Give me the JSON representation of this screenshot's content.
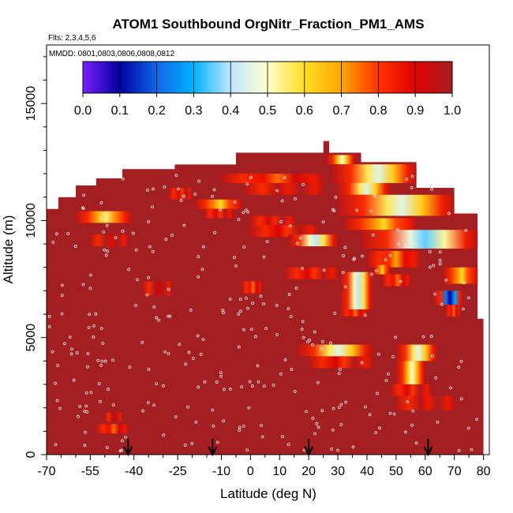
{
  "chart_data": {
    "type": "heatmap",
    "title": "ATOM1 Southbound OrgNitr_Fraction_PM1_AMS",
    "subtitle_flights": "Flts: 2,3,4,5,6",
    "subtitle_dates": "MMDD: 0801,0803,0806,0808,0812",
    "xlabel": "Latitude (deg N)",
    "ylabel": "Altitude (m)",
    "xlim": [
      -70,
      82
    ],
    "ylim": [
      0,
      17500
    ],
    "x_ticks": [
      -70,
      -55,
      -40,
      -25,
      -10,
      0,
      10,
      20,
      30,
      40,
      50,
      60,
      70,
      80
    ],
    "x_tick_labels": [
      "-70",
      "-55",
      "-40",
      "-25",
      "-10",
      "0",
      "10",
      "20",
      "30",
      "40",
      "50",
      "60",
      "70",
      "80"
    ],
    "y_ticks": [
      0,
      5000,
      10000,
      15000
    ],
    "y_tick_labels": [
      "0",
      "5000",
      "10000",
      "15000"
    ],
    "colorbar": {
      "range": [
        0,
        1
      ],
      "tick_labels": [
        "0.0",
        "0.1",
        "0.2",
        "0.3",
        "0.4",
        "0.5",
        "0.6",
        "0.7",
        "0.8",
        "0.9",
        "1.0"
      ],
      "colors": [
        "#7c1fff",
        "#0000a0",
        "#1066e6",
        "#00b2ff",
        "#bfe6ff",
        "#ffffcc",
        "#ffdd22",
        "#ffa500",
        "#ff3300",
        "#e00000",
        "#a71e22"
      ]
    },
    "background_fraction": 1.0,
    "background_color": "#a41f22",
    "envelope": [
      [
        -70,
        10500
      ],
      [
        -66,
        10500
      ],
      [
        -66,
        11000
      ],
      [
        -60,
        11000
      ],
      [
        -60,
        11500
      ],
      [
        -53,
        11500
      ],
      [
        -53,
        11800
      ],
      [
        -44,
        11800
      ],
      [
        -44,
        12200
      ],
      [
        -26,
        12200
      ],
      [
        -26,
        12400
      ],
      [
        -5,
        12400
      ],
      [
        -5,
        12900
      ],
      [
        25,
        12900
      ],
      [
        25,
        13400
      ],
      [
        27,
        13400
      ],
      [
        27,
        12900
      ],
      [
        38,
        12900
      ],
      [
        38,
        12500
      ],
      [
        57,
        12500
      ],
      [
        57,
        11400
      ],
      [
        70,
        11400
      ],
      [
        70,
        10300
      ],
      [
        78,
        10300
      ],
      [
        78,
        5800
      ],
      [
        80,
        5800
      ],
      [
        80,
        0
      ],
      [
        -70,
        0
      ]
    ],
    "features": [
      {
        "lat": [
          -60,
          -41
        ],
        "alt": [
          9900,
          10400
        ],
        "minval": 0.55
      },
      {
        "lat": [
          -55,
          -42
        ],
        "alt": [
          8900,
          9400
        ],
        "minval": 0.88
      },
      {
        "lat": [
          -53,
          -42
        ],
        "alt": [
          900,
          1300
        ],
        "minval": 0.75
      },
      {
        "lat": [
          -50,
          -44
        ],
        "alt": [
          1400,
          1800
        ],
        "minval": 0.9
      },
      {
        "lat": [
          -37,
          -27
        ],
        "alt": [
          6800,
          7400
        ],
        "minval": 0.9
      },
      {
        "lat": [
          -28,
          -20
        ],
        "alt": [
          10900,
          11400
        ],
        "minval": 0.8
      },
      {
        "lat": [
          -19,
          -3
        ],
        "alt": [
          10500,
          10900
        ],
        "minval": 0.6
      },
      {
        "lat": [
          -16,
          -6
        ],
        "alt": [
          10100,
          10500
        ],
        "minval": 0.8
      },
      {
        "lat": [
          -10,
          25
        ],
        "alt": [
          11600,
          12000
        ],
        "minval": 0.75
      },
      {
        "lat": [
          -2,
          25
        ],
        "alt": [
          11100,
          11600
        ],
        "minval": 0.85
      },
      {
        "lat": [
          0,
          15
        ],
        "alt": [
          9800,
          10200
        ],
        "minval": 0.82
      },
      {
        "lat": [
          -3,
          4
        ],
        "alt": [
          6900,
          7400
        ],
        "minval": 0.75
      },
      {
        "lat": [
          0,
          23
        ],
        "alt": [
          9300,
          9800
        ],
        "minval": 0.8
      },
      {
        "lat": [
          13,
          30
        ],
        "alt": [
          8900,
          9400
        ],
        "minval": 0.4
      },
      {
        "lat": [
          12,
          30
        ],
        "alt": [
          7500,
          8000
        ],
        "minval": 0.8
      },
      {
        "lat": [
          16,
          42
        ],
        "alt": [
          4200,
          4700
        ],
        "minval": 0.45
      },
      {
        "lat": [
          20,
          42
        ],
        "alt": [
          3700,
          4200
        ],
        "minval": 0.8
      },
      {
        "lat": [
          26,
          36
        ],
        "alt": [
          12400,
          12800
        ],
        "minval": 0.5
      },
      {
        "lat": [
          28,
          57
        ],
        "alt": [
          11600,
          12400
        ],
        "minval": 0.45
      },
      {
        "lat": [
          30,
          48
        ],
        "alt": [
          11100,
          11600
        ],
        "minval": 0.45
      },
      {
        "lat": [
          30,
          70
        ],
        "alt": [
          10200,
          11100
        ],
        "minval": 0.45
      },
      {
        "lat": [
          32,
          57
        ],
        "alt": [
          9600,
          10100
        ],
        "minval": 0.6
      },
      {
        "lat": [
          38,
          78
        ],
        "alt": [
          8800,
          9600
        ],
        "minval": 0.35
      },
      {
        "lat": [
          40,
          58
        ],
        "alt": [
          8000,
          8700
        ],
        "minval": 0.7
      },
      {
        "lat": [
          42,
          48
        ],
        "alt": [
          7700,
          8100
        ],
        "minval": 0.6
      },
      {
        "lat": [
          45,
          55
        ],
        "alt": [
          7200,
          7700
        ],
        "minval": 0.75
      },
      {
        "lat": [
          31,
          42
        ],
        "alt": [
          6200,
          7800
        ],
        "minval": 0.4
      },
      {
        "lat": [
          31,
          40
        ],
        "alt": [
          5900,
          6200
        ],
        "minval": 0.75
      },
      {
        "lat": [
          66,
          78
        ],
        "alt": [
          7300,
          8000
        ],
        "minval": 0.6
      },
      {
        "lat": [
          63,
          73
        ],
        "alt": [
          6400,
          7000
        ],
        "minval": 0.1
      },
      {
        "lat": [
          67,
          72
        ],
        "alt": [
          5900,
          6400
        ],
        "minval": 0.75
      },
      {
        "lat": [
          50,
          64
        ],
        "alt": [
          4000,
          4700
        ],
        "minval": 0.45
      },
      {
        "lat": [
          50,
          60
        ],
        "alt": [
          3000,
          4000
        ],
        "minval": 0.5
      },
      {
        "lat": [
          48,
          62
        ],
        "alt": [
          2500,
          3000
        ],
        "minval": 0.8
      },
      {
        "lat": [
          50,
          70
        ],
        "alt": [
          1900,
          2500
        ],
        "minval": 0.85
      }
    ],
    "flight_markers_lat": [
      -42,
      -13,
      20,
      61
    ]
  }
}
